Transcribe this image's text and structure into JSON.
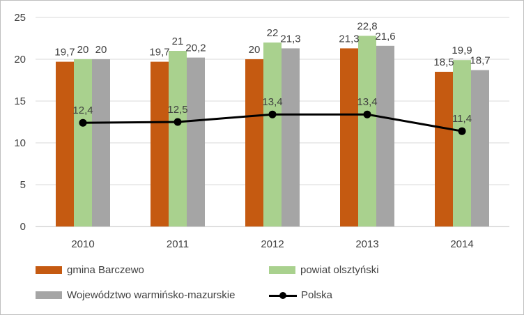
{
  "chart_data": {
    "type": "bar",
    "categories": [
      "2010",
      "2011",
      "2012",
      "2013",
      "2014"
    ],
    "ylim": [
      0,
      25
    ],
    "yticks": [
      0,
      5,
      10,
      15,
      20,
      25
    ],
    "grid": true,
    "legend_position": "bottom",
    "series": [
      {
        "name": "gmina Barczewo",
        "type": "bar",
        "color": "#c55a11",
        "values": [
          19.7,
          19.7,
          20,
          21.3,
          18.5
        ],
        "labels": [
          "19,7",
          "19,7",
          "20",
          "21,3",
          "18,5"
        ]
      },
      {
        "name": "powiat olsztyński",
        "type": "bar",
        "color": "#a9d18e",
        "values": [
          20,
          21,
          22,
          22.8,
          19.9
        ],
        "labels": [
          "20",
          "21",
          "22",
          "22,8",
          "19,9"
        ]
      },
      {
        "name": "Województwo warmińsko-mazurskie",
        "type": "bar",
        "color": "#a5a5a5",
        "values": [
          20,
          20.2,
          21.3,
          21.6,
          18.7
        ],
        "labels": [
          "20",
          "20,2",
          "21,3",
          "21,6",
          "18,7"
        ]
      },
      {
        "name": "Polska",
        "type": "line",
        "color": "#000000",
        "values": [
          12.4,
          12.5,
          13.4,
          13.4,
          11.4
        ],
        "labels": [
          "12,4",
          "12,5",
          "13,4",
          "13,4",
          "11,4"
        ]
      }
    ]
  },
  "legend": {
    "barczewo": "gmina Barczewo",
    "powiat": "powiat olsztyński",
    "wojewodztwo": "Województwo warmińsko-mazurskie",
    "polska": "Polska"
  }
}
